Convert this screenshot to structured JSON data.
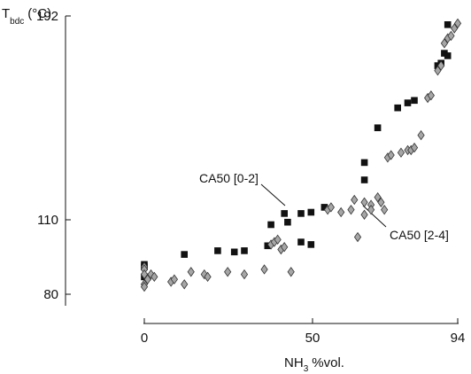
{
  "chart_data": {
    "type": "scatter",
    "title": "",
    "ylabel": {
      "main": "T",
      "sub": "bdc",
      "unit": "(°C)"
    },
    "xlabel": {
      "main": "NH",
      "sub": "3",
      "unit": "%vol."
    },
    "xlim": [
      0,
      94
    ],
    "ylim": [
      80,
      192
    ],
    "x_ticks": [
      "0",
      "50",
      "94"
    ],
    "y_ticks": [
      "80",
      "110",
      "192"
    ],
    "grid": false,
    "legend": "none",
    "series": [
      {
        "marker": "square",
        "color": "#111111",
        "annotation": "CA50 [0-2]",
        "points": [
          [
            0,
            92
          ],
          [
            0,
            91
          ],
          [
            0,
            87
          ],
          [
            1,
            87
          ],
          [
            12,
            96
          ],
          [
            22,
            97.5
          ],
          [
            27,
            97
          ],
          [
            30,
            97.5
          ],
          [
            37,
            99.5
          ],
          [
            38,
            108
          ],
          [
            42,
            112.5
          ],
          [
            43,
            109
          ],
          [
            47,
            101
          ],
          [
            47,
            112.5
          ],
          [
            50,
            100
          ],
          [
            50,
            113
          ],
          [
            54,
            115
          ],
          [
            66,
            126
          ],
          [
            66,
            133
          ],
          [
            70,
            147
          ],
          [
            76,
            155
          ],
          [
            79,
            157
          ],
          [
            81,
            158
          ],
          [
            88,
            172
          ],
          [
            89,
            173
          ],
          [
            90,
            177
          ],
          [
            91,
            176
          ],
          [
            91,
            188.5
          ]
        ]
      },
      {
        "marker": "diamond",
        "color": "#a6a6a6",
        "annotation": "CA50 [2-4]",
        "points": [
          [
            0,
            91
          ],
          [
            0,
            90
          ],
          [
            0,
            88
          ],
          [
            0,
            84
          ],
          [
            0,
            83
          ],
          [
            1,
            86
          ],
          [
            2,
            88
          ],
          [
            3,
            87
          ],
          [
            8,
            85
          ],
          [
            9,
            86
          ],
          [
            12,
            84
          ],
          [
            14,
            89
          ],
          [
            18,
            88
          ],
          [
            19,
            87
          ],
          [
            25,
            89
          ],
          [
            30,
            88
          ],
          [
            36,
            90
          ],
          [
            38,
            100
          ],
          [
            39,
            101
          ],
          [
            40,
            102
          ],
          [
            41,
            98
          ],
          [
            42,
            99
          ],
          [
            44,
            89
          ],
          [
            55,
            114
          ],
          [
            56,
            115
          ],
          [
            59,
            113
          ],
          [
            62,
            114
          ],
          [
            63,
            118
          ],
          [
            64,
            103
          ],
          [
            66,
            112
          ],
          [
            66,
            117
          ],
          [
            68,
            116
          ],
          [
            68,
            114
          ],
          [
            70,
            119
          ],
          [
            71,
            117
          ],
          [
            72,
            114
          ],
          [
            73,
            135
          ],
          [
            74,
            136
          ],
          [
            77,
            137
          ],
          [
            79,
            138
          ],
          [
            80,
            138
          ],
          [
            81,
            139
          ],
          [
            83,
            144
          ],
          [
            85,
            159
          ],
          [
            86,
            160
          ],
          [
            88,
            170
          ],
          [
            89,
            172
          ],
          [
            90,
            181
          ],
          [
            91,
            183
          ],
          [
            92,
            184
          ],
          [
            93,
            187
          ],
          [
            94,
            189
          ]
        ]
      }
    ]
  }
}
